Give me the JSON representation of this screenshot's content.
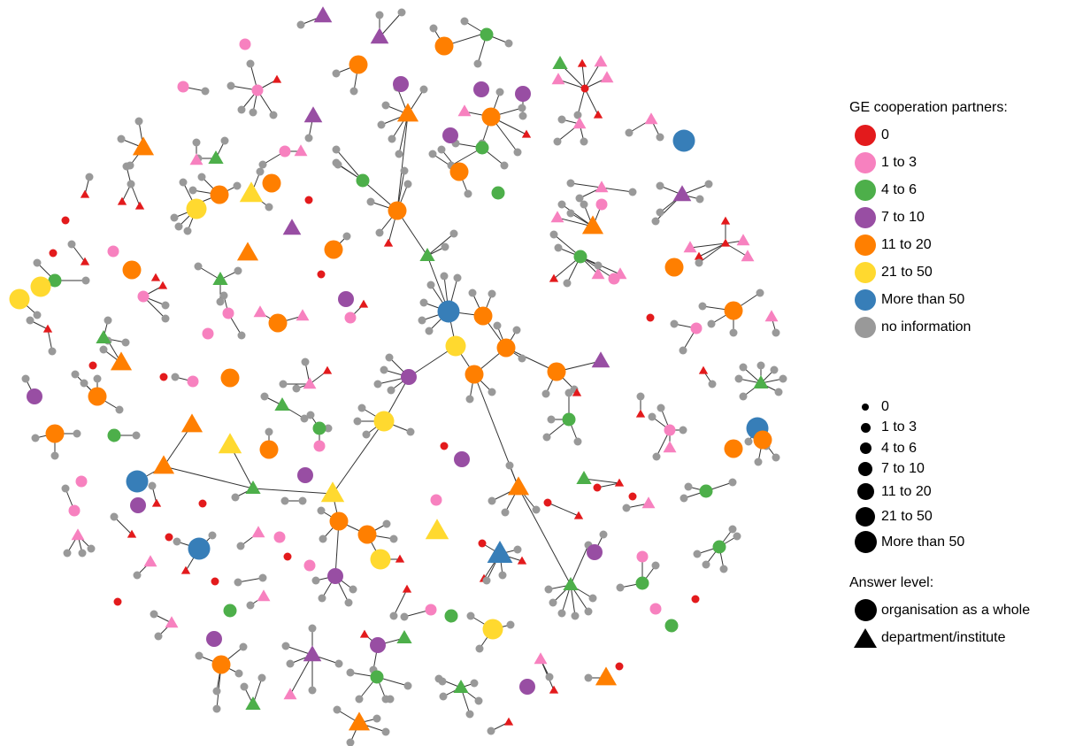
{
  "legend_color": {
    "title": "GE cooperation partners:",
    "items": [
      {
        "label": "0",
        "color": "#e31a1c"
      },
      {
        "label": "1 to 3",
        "color": "#f781bf"
      },
      {
        "label": "4 to 6",
        "color": "#4daf4a"
      },
      {
        "label": "7 to 10",
        "color": "#984ea3"
      },
      {
        "label": "11 to 20",
        "color": "#ff7f00"
      },
      {
        "label": "21 to 50",
        "color": "#ffd92f"
      },
      {
        "label": "More than 50",
        "color": "#377eb8"
      },
      {
        "label": "no information",
        "color": "#999999"
      }
    ]
  },
  "legend_size": {
    "items": [
      "0",
      "1 to 3",
      "4 to 6",
      "7 to 10",
      "11 to 20",
      "21 to 50",
      "More than 50"
    ]
  },
  "legend_shape": {
    "title": "Answer level:",
    "items": [
      {
        "label": "organisation as a whole",
        "shape": "circle"
      },
      {
        "label": "department/institute",
        "shape": "triangle"
      }
    ]
  },
  "colors": {
    "edge": "#333333",
    "no_info": "#999999"
  }
}
